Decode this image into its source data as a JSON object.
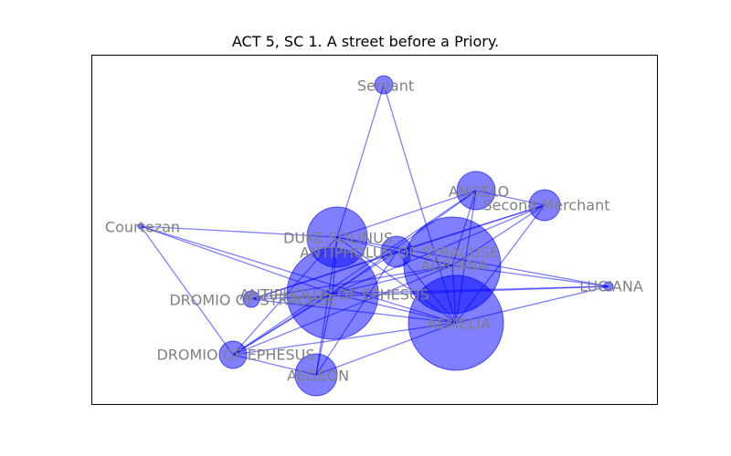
{
  "title": "ACT 5, SC 1. A street before a Priory.",
  "colors": {
    "node": "#0000ff",
    "edge": "#0000ff",
    "label": "#808080"
  },
  "nodes": [
    {
      "id": "Servant",
      "label": "Servant"
    },
    {
      "id": "ANGELO",
      "label": "ANGELO"
    },
    {
      "id": "Second Merchant",
      "label": "Second Merchant"
    },
    {
      "id": "Courtezan",
      "label": "Courtezan"
    },
    {
      "id": "DUKE SOLINUS",
      "label": "DUKE SOLINUS"
    },
    {
      "id": "ANTIPHOLUS OF SYRACUSE",
      "label": "ANTIPHOLUS OF SYRACUSE"
    },
    {
      "id": "ADRIANA",
      "label": "ADRIANA"
    },
    {
      "id": "LUCIANA",
      "label": "LUCIANA"
    },
    {
      "id": "ANTIPHOLUS OF EPHESUS",
      "label": "ANTIPHOLUS OF EPHESUS"
    },
    {
      "id": "DROMIO OF SYRACUSE",
      "label": "DROMIO OF SYRACUSE"
    },
    {
      "id": "AEMELIA",
      "label": "AEMELIA"
    },
    {
      "id": "DROMIO OF EPHESUS",
      "label": "DROMIO OF EPHESUS"
    },
    {
      "id": "AEGEON",
      "label": "AEGEON"
    }
  ],
  "edges": [
    [
      "Servant",
      "DUKE SOLINUS"
    ],
    [
      "Servant",
      "AEMELIA"
    ],
    [
      "ANGELO",
      "Second Merchant"
    ],
    [
      "ANGELO",
      "ADRIANA"
    ],
    [
      "ANGELO",
      "AEMELIA"
    ],
    [
      "ANGELO",
      "ANTIPHOLUS OF EPHESUS"
    ],
    [
      "ANGELO",
      "DUKE SOLINUS"
    ],
    [
      "ANGELO",
      "DROMIO OF EPHESUS"
    ],
    [
      "Second Merchant",
      "ADRIANA"
    ],
    [
      "Second Merchant",
      "AEMELIA"
    ],
    [
      "Second Merchant",
      "ANTIPHOLUS OF SYRACUSE"
    ],
    [
      "Second Merchant",
      "ANTIPHOLUS OF EPHESUS"
    ],
    [
      "Second Merchant",
      "DROMIO OF SYRACUSE"
    ],
    [
      "Courtezan",
      "DUKE SOLINUS"
    ],
    [
      "Courtezan",
      "DROMIO OF EPHESUS"
    ],
    [
      "Courtezan",
      "AEMELIA"
    ],
    [
      "Courtezan",
      "ANTIPHOLUS OF EPHESUS"
    ],
    [
      "DUKE SOLINUS",
      "ADRIANA"
    ],
    [
      "DUKE SOLINUS",
      "AEMELIA"
    ],
    [
      "DUKE SOLINUS",
      "ANTIPHOLUS OF EPHESUS"
    ],
    [
      "DUKE SOLINUS",
      "AEGEON"
    ],
    [
      "DUKE SOLINUS",
      "DROMIO OF EPHESUS"
    ],
    [
      "DUKE SOLINUS",
      "LUCIANA"
    ],
    [
      "ANTIPHOLUS OF SYRACUSE",
      "ADRIANA"
    ],
    [
      "ANTIPHOLUS OF SYRACUSE",
      "AEMELIA"
    ],
    [
      "ANTIPHOLUS OF SYRACUSE",
      "DROMIO OF SYRACUSE"
    ],
    [
      "ANTIPHOLUS OF SYRACUSE",
      "AEGEON"
    ],
    [
      "ANTIPHOLUS OF SYRACUSE",
      "DROMIO OF EPHESUS"
    ],
    [
      "ADRIANA",
      "LUCIANA"
    ],
    [
      "ADRIANA",
      "AEMELIA"
    ],
    [
      "ADRIANA",
      "ANTIPHOLUS OF EPHESUS"
    ],
    [
      "ADRIANA",
      "DROMIO OF SYRACUSE"
    ],
    [
      "ADRIANA",
      "DROMIO OF EPHESUS"
    ],
    [
      "LUCIANA",
      "AEMELIA"
    ],
    [
      "LUCIANA",
      "ANTIPHOLUS OF EPHESUS"
    ],
    [
      "LUCIANA",
      "DROMIO OF SYRACUSE"
    ],
    [
      "ANTIPHOLUS OF EPHESUS",
      "AEMELIA"
    ],
    [
      "ANTIPHOLUS OF EPHESUS",
      "DROMIO OF EPHESUS"
    ],
    [
      "ANTIPHOLUS OF EPHESUS",
      "AEGEON"
    ],
    [
      "DROMIO OF SYRACUSE",
      "AEMELIA"
    ],
    [
      "DROMIO OF EPHESUS",
      "AEMELIA"
    ],
    [
      "DROMIO OF EPHESUS",
      "AEGEON"
    ],
    [
      "AEGEON",
      "AEMELIA"
    ]
  ]
}
